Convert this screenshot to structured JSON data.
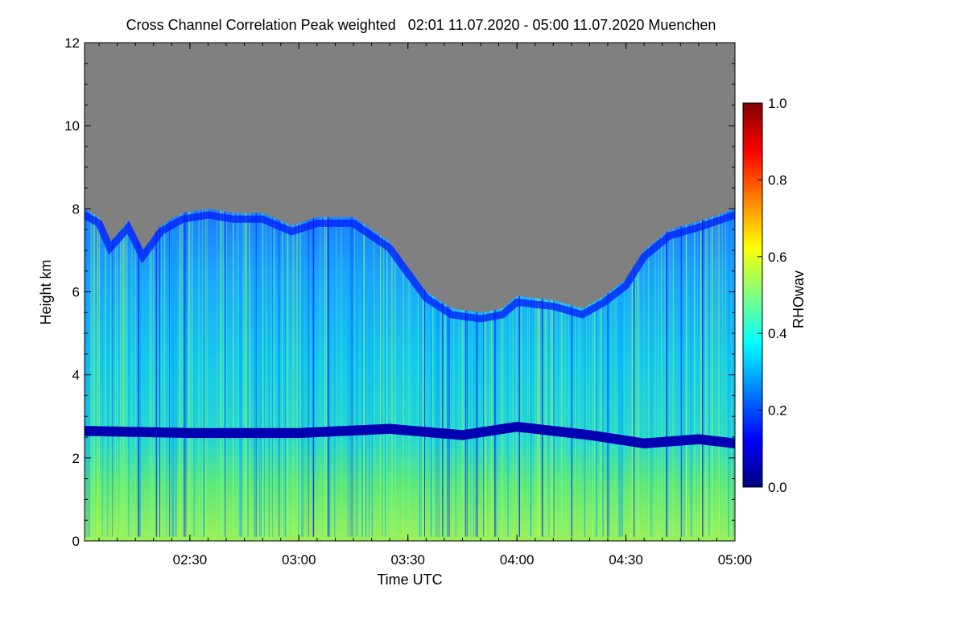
{
  "chart_data": {
    "type": "heatmap",
    "title": "Cross Channel Correlation Peak weighted   02:01 11.07.2020 - 05:00 11.07.2020 Muenchen",
    "xlabel": "Time UTC",
    "ylabel": "Height km",
    "colorbar_label": "RHOwav",
    "x_range_minutes_utc": [
      121,
      300
    ],
    "x_ticks": [
      {
        "t": 150,
        "label": "02:30"
      },
      {
        "t": 180,
        "label": "03:00"
      },
      {
        "t": 210,
        "label": "03:30"
      },
      {
        "t": 240,
        "label": "04:00"
      },
      {
        "t": 270,
        "label": "04:30"
      },
      {
        "t": 300,
        "label": "05:00"
      }
    ],
    "ylim": [
      0,
      12
    ],
    "y_ticks": [
      0,
      2,
      4,
      6,
      8,
      10,
      12
    ],
    "y_tick_labels": [
      "0",
      "2",
      "4",
      "6",
      "8",
      "10",
      "12"
    ],
    "colorbar_range": [
      0.0,
      1.0
    ],
    "colorbar_ticks": [
      0.0,
      0.2,
      0.4,
      0.6,
      0.8,
      1.0
    ],
    "colorbar_tick_labels": [
      "0.0",
      "0.2",
      "0.4",
      "0.6",
      "0.8",
      "1.0"
    ],
    "no_signal_color": "#808080",
    "colormap": [
      "#00007f",
      "#0000ff",
      "#0080ff",
      "#00ffff",
      "#80ff80",
      "#ffff00",
      "#ff8000",
      "#ff0000",
      "#7f0000"
    ],
    "signal_top_height_km": [
      {
        "t": 121,
        "h": 8.0
      },
      {
        "t": 125,
        "h": 7.8
      },
      {
        "t": 128,
        "h": 7.2
      },
      {
        "t": 133,
        "h": 7.7
      },
      {
        "t": 137,
        "h": 7.0
      },
      {
        "t": 142,
        "h": 7.6
      },
      {
        "t": 148,
        "h": 7.9
      },
      {
        "t": 155,
        "h": 8.0
      },
      {
        "t": 162,
        "h": 7.9
      },
      {
        "t": 170,
        "h": 7.9
      },
      {
        "t": 178,
        "h": 7.6
      },
      {
        "t": 185,
        "h": 7.8
      },
      {
        "t": 195,
        "h": 7.8
      },
      {
        "t": 205,
        "h": 7.2
      },
      {
        "t": 210,
        "h": 6.6
      },
      {
        "t": 215,
        "h": 6.0
      },
      {
        "t": 222,
        "h": 5.6
      },
      {
        "t": 230,
        "h": 5.5
      },
      {
        "t": 236,
        "h": 5.6
      },
      {
        "t": 240,
        "h": 5.9
      },
      {
        "t": 250,
        "h": 5.8
      },
      {
        "t": 258,
        "h": 5.6
      },
      {
        "t": 264,
        "h": 5.9
      },
      {
        "t": 270,
        "h": 6.3
      },
      {
        "t": 275,
        "h": 7.0
      },
      {
        "t": 282,
        "h": 7.5
      },
      {
        "t": 290,
        "h": 7.7
      },
      {
        "t": 300,
        "h": 8.0
      }
    ],
    "low_correlation_layer_km": [
      {
        "t": 121,
        "h": 2.65
      },
      {
        "t": 150,
        "h": 2.6
      },
      {
        "t": 180,
        "h": 2.6
      },
      {
        "t": 205,
        "h": 2.7
      },
      {
        "t": 225,
        "h": 2.55
      },
      {
        "t": 240,
        "h": 2.75
      },
      {
        "t": 260,
        "h": 2.55
      },
      {
        "t": 275,
        "h": 2.35
      },
      {
        "t": 290,
        "h": 2.45
      },
      {
        "t": 300,
        "h": 2.35
      }
    ],
    "typical_values": {
      "below_layer": 0.5,
      "above_layer": 0.35,
      "low_layer": 0.05,
      "cloud_top_edge": 0.15
    }
  }
}
